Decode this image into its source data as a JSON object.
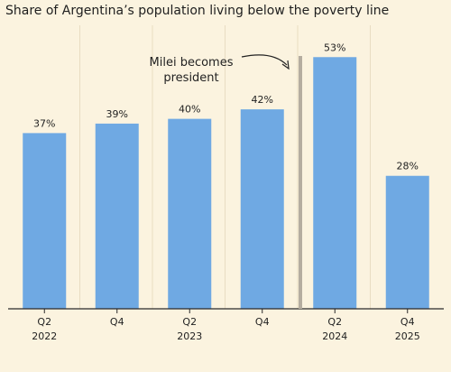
{
  "chart_data": {
    "type": "bar",
    "title": "Share of Argentina’s population living below the poverty line",
    "categories": [
      {
        "quarter": "Q2",
        "year": "2022"
      },
      {
        "quarter": "Q4",
        "year": ""
      },
      {
        "quarter": "Q2",
        "year": "2023"
      },
      {
        "quarter": "Q4",
        "year": ""
      },
      {
        "quarter": "Q2",
        "year": "2024"
      },
      {
        "quarter": "Q4",
        "year": "2025"
      }
    ],
    "values": [
      37,
      39,
      40,
      42,
      53,
      28
    ],
    "value_labels": [
      "37%",
      "39%",
      "40%",
      "42%",
      "53%",
      "28%"
    ],
    "ylim": [
      0,
      60
    ],
    "grid": false,
    "annotation": {
      "lines": [
        "Milei becomes",
        "president"
      ],
      "after_category_index": 3
    },
    "colors": {
      "background": "#fbf3df",
      "bar": "#6fa9e3",
      "marker_line": "#b5ada0",
      "axis": "#2a2a2a",
      "grid": "#e8dcc2"
    }
  }
}
